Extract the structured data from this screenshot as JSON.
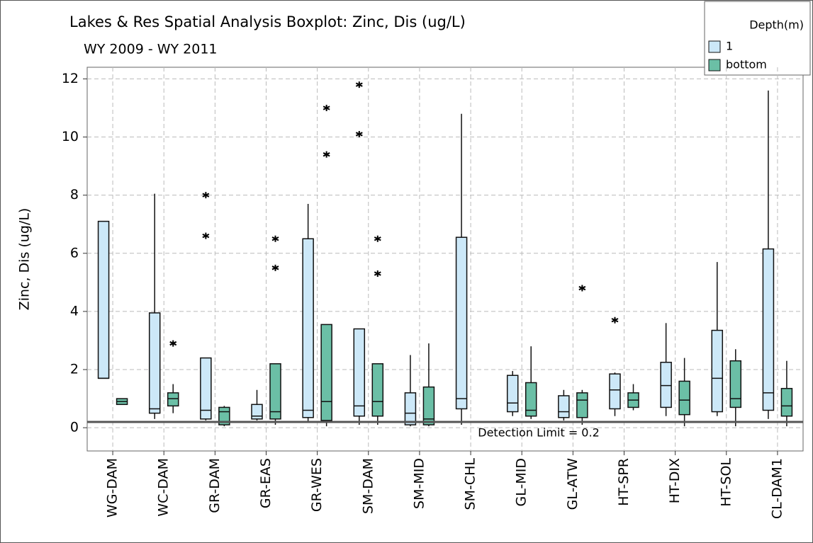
{
  "chart_data": {
    "type": "boxplot",
    "title": "Lakes & Res Spatial Analysis Boxplot: Zinc, Dis (ug/L)",
    "subtitle": "WY 2009 - WY 2011",
    "y_label": "Zinc, Dis (ug/L)",
    "categories": [
      "WG-DAM",
      "WC-DAM",
      "GR-DAM",
      "GR-EAS",
      "GR-WES",
      "SM-DAM",
      "SM-MID",
      "SM-CHL",
      "GL-MID",
      "GL-ATW",
      "HT-SPR",
      "HT-DIX",
      "HT-SOL",
      "CL-DAM1"
    ],
    "legend_title": "Depth(m)",
    "legend_position": "upper right",
    "grid": true,
    "ylim": [
      -0.8,
      12.4
    ],
    "yticks": [
      0,
      2,
      4,
      6,
      8,
      10,
      12
    ],
    "reference_line": {
      "value": 0.2,
      "label": "Detection Limit = 0.2"
    },
    "series": [
      {
        "name": "1",
        "color": "#cce8f8",
        "boxes": [
          {
            "min": 1.7,
            "q1": 1.7,
            "median": 1.7,
            "q3": 7.1,
            "max": 7.1,
            "outliers": []
          },
          {
            "min": 0.3,
            "q1": 0.5,
            "median": 0.65,
            "q3": 3.95,
            "max": 8.05,
            "outliers": []
          },
          {
            "min": 0.25,
            "q1": 0.3,
            "median": 0.6,
            "q3": 2.4,
            "max": 2.4,
            "outliers": [
              8.0,
              6.6
            ]
          },
          {
            "min": 0.25,
            "q1": 0.3,
            "median": 0.4,
            "q3": 0.8,
            "max": 1.3,
            "outliers": []
          },
          {
            "min": 0.2,
            "q1": 0.35,
            "median": 0.6,
            "q3": 6.5,
            "max": 7.7,
            "outliers": []
          },
          {
            "min": 0.1,
            "q1": 0.4,
            "median": 0.75,
            "q3": 3.4,
            "max": 3.4,
            "outliers": [
              11.8,
              10.1
            ]
          },
          {
            "min": 0.05,
            "q1": 0.1,
            "median": 0.5,
            "q3": 1.2,
            "max": 2.5,
            "outliers": []
          },
          {
            "min": 0.1,
            "q1": 0.65,
            "median": 1.0,
            "q3": 6.55,
            "max": 10.8,
            "outliers": []
          },
          {
            "min": 0.4,
            "q1": 0.55,
            "median": 0.85,
            "q3": 1.8,
            "max": 1.95,
            "outliers": []
          },
          {
            "min": 0.25,
            "q1": 0.35,
            "median": 0.55,
            "q3": 1.1,
            "max": 1.3,
            "outliers": []
          },
          {
            "min": 0.4,
            "q1": 0.65,
            "median": 1.3,
            "q3": 1.85,
            "max": 1.9,
            "outliers": [
              3.7
            ]
          },
          {
            "min": 0.4,
            "q1": 0.7,
            "median": 1.45,
            "q3": 2.25,
            "max": 3.6,
            "outliers": []
          },
          {
            "min": 0.4,
            "q1": 0.55,
            "median": 1.7,
            "q3": 3.35,
            "max": 5.7,
            "outliers": []
          },
          {
            "min": 0.3,
            "q1": 0.6,
            "median": 1.2,
            "q3": 6.15,
            "max": 11.6,
            "outliers": []
          }
        ]
      },
      {
        "name": "bottom",
        "color": "#6bbfa6",
        "boxes": [
          {
            "min": 0.8,
            "q1": 0.8,
            "median": 0.9,
            "q3": 1.0,
            "max": 1.0,
            "outliers": []
          },
          {
            "min": 0.5,
            "q1": 0.75,
            "median": 1.0,
            "q3": 1.2,
            "max": 1.5,
            "outliers": [
              2.9
            ]
          },
          {
            "min": 0.05,
            "q1": 0.1,
            "median": 0.55,
            "q3": 0.7,
            "max": 0.75,
            "outliers": []
          },
          {
            "min": 0.1,
            "q1": 0.3,
            "median": 0.55,
            "q3": 2.2,
            "max": 2.2,
            "outliers": [
              6.5,
              5.5
            ]
          },
          {
            "min": 0.05,
            "q1": 0.25,
            "median": 0.9,
            "q3": 3.55,
            "max": 3.55,
            "outliers": [
              11.0,
              9.4
            ]
          },
          {
            "min": 0.1,
            "q1": 0.4,
            "median": 0.9,
            "q3": 2.2,
            "max": 2.2,
            "outliers": [
              6.5,
              5.3
            ]
          },
          {
            "min": 0.05,
            "q1": 0.1,
            "median": 0.3,
            "q3": 1.4,
            "max": 2.9,
            "outliers": []
          },
          null,
          {
            "min": 0.3,
            "q1": 0.4,
            "median": 0.6,
            "q3": 1.55,
            "max": 2.8,
            "outliers": []
          },
          {
            "min": 0.1,
            "q1": 0.35,
            "median": 0.95,
            "q3": 1.2,
            "max": 1.3,
            "outliers": [
              4.8
            ]
          },
          {
            "min": 0.6,
            "q1": 0.7,
            "median": 0.95,
            "q3": 1.2,
            "max": 1.5,
            "outliers": []
          },
          {
            "min": 0.05,
            "q1": 0.45,
            "median": 0.95,
            "q3": 1.6,
            "max": 2.4,
            "outliers": []
          },
          {
            "min": 0.05,
            "q1": 0.7,
            "median": 1.0,
            "q3": 2.3,
            "max": 2.7,
            "outliers": []
          },
          {
            "min": 0.05,
            "q1": 0.4,
            "median": 0.75,
            "q3": 1.35,
            "max": 2.3,
            "outliers": []
          }
        ]
      }
    ]
  }
}
